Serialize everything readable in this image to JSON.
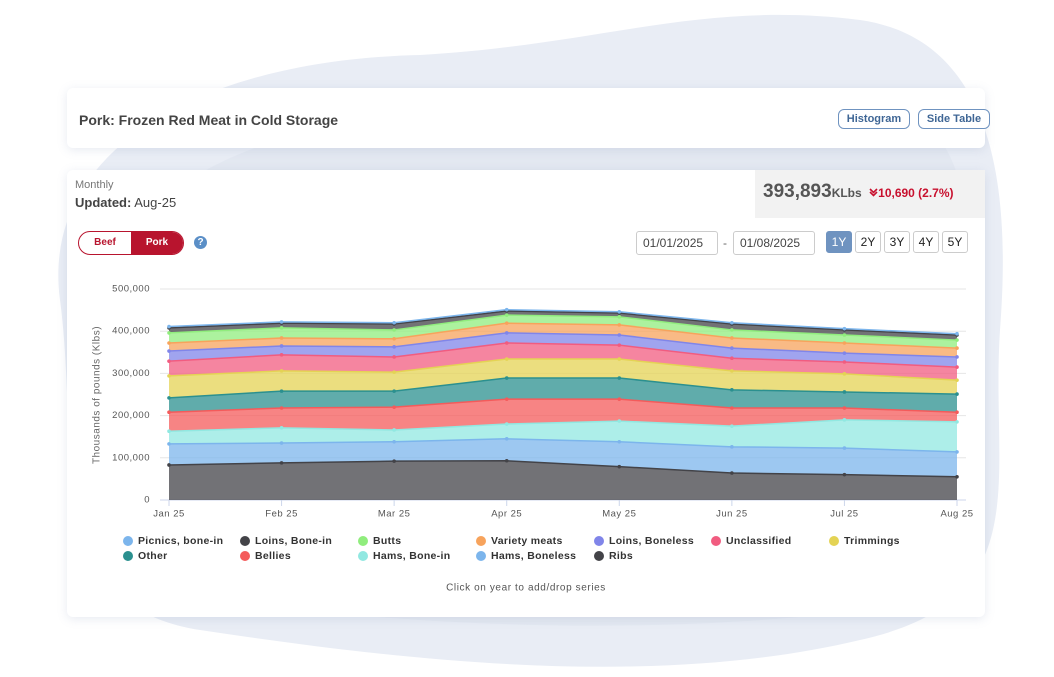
{
  "header": {
    "title": "Pork: Frozen Red Meat in Cold Storage",
    "buttons": [
      "Histogram",
      "Side Table"
    ]
  },
  "summary": {
    "frequency": "Monthly",
    "updated_label": "Updated:",
    "updated": "Aug-25",
    "value": "393,893",
    "unit": "KLbs",
    "change": "10,690 (2.7%)"
  },
  "toggle": [
    "Beef",
    "Pork"
  ],
  "help": "?",
  "date_range": {
    "start": "01/01/2025",
    "separator": "-",
    "end": "01/08/2025"
  },
  "range_buttons": [
    "1Y",
    "2Y",
    "3Y",
    "4Y",
    "5Y"
  ],
  "chart_data": {
    "type": "area",
    "stacked": true,
    "ylabel": "Thousands of pounds (Klbs)",
    "categories": [
      "Jan 25",
      "Feb 25",
      "Mar 25",
      "Apr 25",
      "May 25",
      "Jun 25",
      "Jul 25",
      "Aug 25"
    ],
    "ylim": [
      0,
      500000
    ],
    "yticks": [
      0,
      {
        "value": 100000,
        "label": "100,000"
      },
      {
        "value": 200000,
        "label": "200,000"
      },
      {
        "value": 300000,
        "label": "300,000"
      },
      {
        "value": 400000,
        "label": "400,000"
      },
      {
        "value": 500000,
        "label": "500,000"
      }
    ],
    "grid": true,
    "series": [
      {
        "name": "Picnics, bone-in",
        "color": "#7cb5ec",
        "values": [
          3000,
          3000,
          3000,
          3000,
          3000,
          3000,
          3000,
          3000
        ]
      },
      {
        "name": "Loins, Bone-in",
        "color": "#434348",
        "values": [
          12000,
          11000,
          14000,
          10000,
          9000,
          14000,
          12000,
          12000
        ]
      },
      {
        "name": "Butts",
        "color": "#90ed7d",
        "values": [
          24000,
          24000,
          21000,
          19000,
          19000,
          19000,
          19000,
          19000
        ]
      },
      {
        "name": "Variety meats",
        "color": "#f7a35c",
        "values": [
          19000,
          19000,
          19000,
          23000,
          24000,
          24000,
          24000,
          21000
        ]
      },
      {
        "name": "Loins, Boneless",
        "color": "#8085e9",
        "values": [
          24000,
          21000,
          24000,
          24000,
          24000,
          24000,
          21000,
          24000
        ]
      },
      {
        "name": "Unclassified",
        "color": "#f15c80",
        "values": [
          35000,
          38000,
          36000,
          38000,
          33000,
          30000,
          28000,
          31000
        ]
      },
      {
        "name": "Trimmings",
        "color": "#e4d354",
        "values": [
          52000,
          48000,
          45000,
          45000,
          45000,
          45000,
          43000,
          33000
        ]
      },
      {
        "name": "Other",
        "color": "#2b908f",
        "values": [
          34000,
          40000,
          38000,
          50000,
          50000,
          43000,
          38000,
          43000
        ]
      },
      {
        "name": "Bellies",
        "color": "#f45b5b",
        "values": [
          45000,
          47000,
          54000,
          59000,
          52000,
          43000,
          28000,
          23000
        ]
      },
      {
        "name": "Hams, Bone-in",
        "color": "#91e8e1",
        "values": [
          30000,
          36000,
          28000,
          35000,
          49000,
          49000,
          67000,
          71000
        ]
      },
      {
        "name": "Hams, Boneless",
        "color": "#7cb5ec",
        "values": [
          50000,
          47000,
          46000,
          52000,
          59000,
          62000,
          63000,
          59000
        ]
      },
      {
        "name": "Ribs",
        "color": "#434348",
        "values": [
          83000,
          88000,
          92000,
          93000,
          79000,
          64000,
          60000,
          55000
        ]
      }
    ]
  },
  "footnote": "Click on year to add/drop series"
}
